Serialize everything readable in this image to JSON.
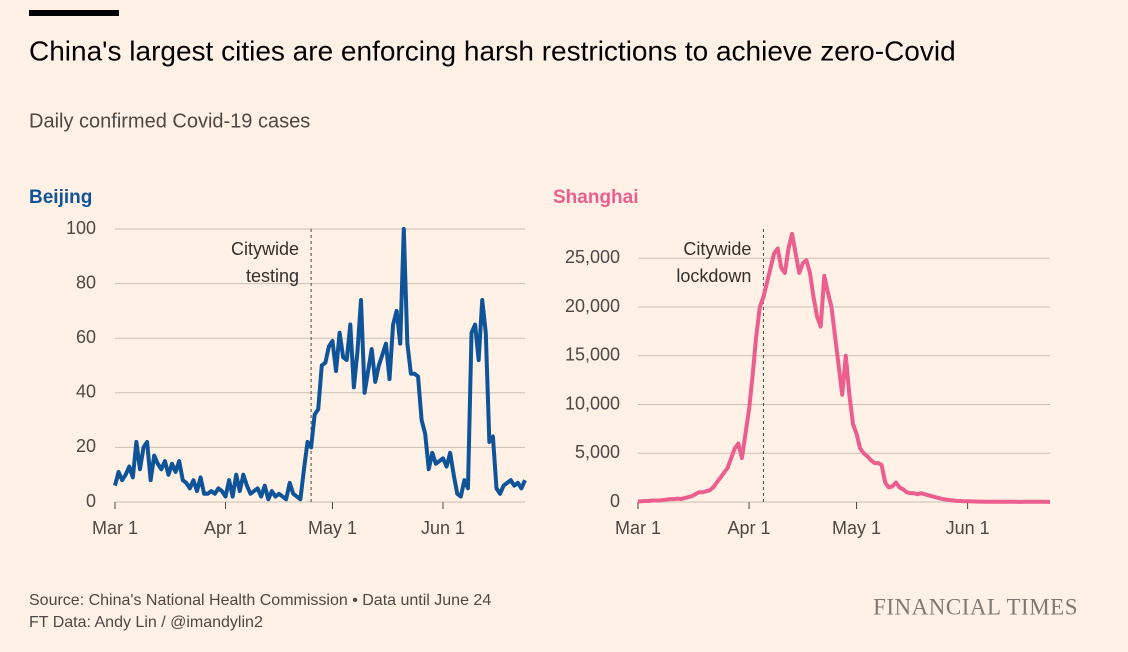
{
  "header": {
    "title": "China's largest cities are enforcing harsh restrictions to achieve zero-Covid",
    "subtitle": "Daily confirmed Covid-19 cases"
  },
  "footer": {
    "source": "Source: China's National Health Commission • Data until June 24",
    "credit": "FT Data: Andy Lin / @imandylin2",
    "brand": "FINANCIAL TIMES"
  },
  "chart_data": [
    {
      "type": "line",
      "title": "Beijing",
      "color": "#0f5499",
      "categories": [
        "Mar 1",
        null,
        null,
        null,
        null,
        null,
        null,
        null,
        null,
        null,
        null,
        null,
        null,
        null,
        null,
        null,
        null,
        null,
        null,
        null,
        null,
        null,
        null,
        null,
        null,
        null,
        null,
        null,
        null,
        null,
        null,
        "Apr 1",
        null,
        null,
        null,
        null,
        null,
        null,
        null,
        null,
        null,
        null,
        null,
        null,
        null,
        null,
        null,
        null,
        null,
        null,
        null,
        null,
        null,
        null,
        null,
        null,
        null,
        null,
        null,
        null,
        null,
        "May 1",
        null,
        null,
        null,
        null,
        null,
        null,
        null,
        null,
        null,
        null,
        null,
        null,
        null,
        null,
        null,
        null,
        null,
        null,
        null,
        null,
        null,
        null,
        null,
        null,
        null,
        null,
        null,
        null,
        null,
        null,
        "Jun 1",
        null,
        null,
        null,
        null,
        null,
        null,
        null,
        null,
        null,
        null,
        null,
        null,
        null,
        null,
        null,
        null,
        null,
        null,
        null,
        null,
        null,
        null,
        null
      ],
      "values": [
        6,
        11,
        8,
        10,
        13,
        9,
        22,
        12,
        20,
        22,
        8,
        17,
        14,
        12,
        15,
        10,
        14,
        11,
        15,
        8,
        7,
        5,
        8,
        4,
        9,
        3,
        3,
        4,
        3,
        5,
        4,
        2,
        8,
        2,
        10,
        4,
        10,
        6,
        3,
        4,
        5,
        2,
        6,
        1,
        4,
        2,
        3,
        2,
        1,
        7,
        3,
        2,
        1,
        12,
        22,
        20,
        32,
        34,
        50,
        51,
        57,
        59,
        48,
        62,
        53,
        52,
        65,
        42,
        55,
        74,
        40,
        48,
        56,
        44,
        50,
        54,
        58,
        45,
        65,
        70,
        58,
        100,
        58,
        47,
        47,
        46,
        30,
        25,
        12,
        18,
        14,
        15,
        16,
        13,
        18,
        10,
        3,
        2,
        8,
        5,
        62,
        65,
        52,
        74,
        62,
        22,
        24,
        5,
        3,
        6,
        7,
        8,
        6,
        7,
        5,
        8
      ],
      "ylim": [
        0,
        100
      ],
      "yticks": [
        0,
        20,
        40,
        60,
        80,
        100
      ],
      "grid": true,
      "annotation": {
        "lines": [
          "Citywide",
          "testing"
        ],
        "at": 55
      }
    },
    {
      "type": "line",
      "title": "Shanghai",
      "color": "#eb5e8d",
      "categories": [
        "Mar 1",
        null,
        null,
        null,
        null,
        null,
        null,
        null,
        null,
        null,
        null,
        null,
        null,
        null,
        null,
        null,
        null,
        null,
        null,
        null,
        null,
        null,
        null,
        null,
        null,
        null,
        null,
        null,
        null,
        null,
        null,
        "Apr 1",
        null,
        null,
        null,
        null,
        null,
        null,
        null,
        null,
        null,
        null,
        null,
        null,
        null,
        null,
        null,
        null,
        null,
        null,
        null,
        null,
        null,
        null,
        null,
        null,
        null,
        null,
        null,
        null,
        null,
        "May 1",
        null,
        null,
        null,
        null,
        null,
        null,
        null,
        null,
        null,
        null,
        null,
        null,
        null,
        null,
        null,
        null,
        null,
        null,
        null,
        null,
        null,
        null,
        null,
        null,
        null,
        null,
        null,
        null,
        null,
        null,
        "Jun 1",
        null,
        null,
        null,
        null,
        null,
        null,
        null,
        null,
        null,
        null,
        null,
        null,
        null,
        null,
        null,
        null,
        null,
        null,
        null,
        null,
        null,
        null,
        null
      ],
      "values": [
        50,
        80,
        100,
        100,
        150,
        150,
        150,
        200,
        250,
        300,
        300,
        350,
        300,
        400,
        500,
        600,
        800,
        1000,
        1000,
        1100,
        1200,
        1500,
        2000,
        2500,
        3000,
        3500,
        4500,
        5500,
        6000,
        4500,
        7000,
        9500,
        13000,
        17000,
        20000,
        21000,
        22500,
        24000,
        25500,
        26000,
        24000,
        23500,
        26000,
        27500,
        25500,
        23500,
        24500,
        24800,
        23500,
        21000,
        19000,
        18000,
        23200,
        21500,
        20000,
        17000,
        14000,
        11000,
        15000,
        11000,
        8000,
        7000,
        5500,
        5000,
        4700,
        4300,
        4000,
        4000,
        3800,
        2000,
        1500,
        1600,
        2000,
        1500,
        1300,
        1000,
        900,
        900,
        800,
        900,
        800,
        700,
        600,
        500,
        400,
        300,
        250,
        200,
        150,
        100,
        100,
        80,
        80,
        60,
        50,
        40,
        40,
        30,
        30,
        20,
        20,
        20,
        20,
        20,
        30,
        20,
        10,
        10,
        20,
        20,
        20,
        20,
        20,
        20,
        10,
        10
      ],
      "ylim": [
        0,
        28000
      ],
      "yticks": [
        0,
        {
          "value": 5000,
          "label": "5,000"
        },
        {
          "value": 10000,
          "label": "10,000"
        },
        {
          "value": 15000,
          "label": "15,000"
        },
        {
          "value": 20000,
          "label": "20,000"
        },
        {
          "value": 25000,
          "label": "25,000"
        }
      ],
      "grid": true,
      "annotation": {
        "lines": [
          "Citywide",
          "lockdown"
        ],
        "at": 35
      }
    }
  ]
}
